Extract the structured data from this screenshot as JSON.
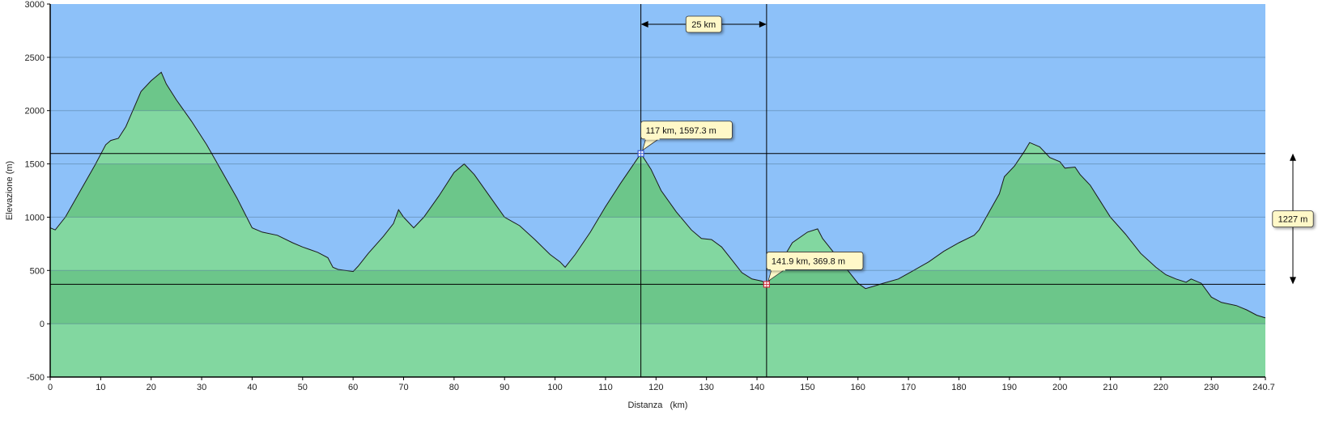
{
  "chart_data": {
    "type": "area",
    "xlabel": "Distanza   (km)",
    "ylabel": "Elevazione (m)",
    "xlim": [
      0,
      240.7
    ],
    "ylim": [
      -500,
      3000
    ],
    "x_ticks": [
      0,
      10,
      20,
      30,
      40,
      50,
      60,
      70,
      80,
      90,
      100,
      110,
      120,
      130,
      140,
      150,
      160,
      170,
      180,
      190,
      200,
      210,
      220,
      230
    ],
    "x_end_label": "240.7",
    "y_ticks": [
      -500,
      0,
      500,
      1000,
      1500,
      2000,
      2500,
      3000
    ],
    "grid": true,
    "colors": {
      "sky": "#8dc1f9",
      "area_light": "#82d7a0",
      "area_dark": "#6cc68a",
      "line": "#1a1a1a",
      "callout_bg": "#fff8c8"
    },
    "profile": {
      "x": [
        0,
        1,
        3,
        6,
        9,
        11,
        12,
        13.5,
        15,
        18,
        20,
        22,
        23,
        25,
        28,
        31,
        34,
        37,
        40,
        42,
        45,
        48,
        50,
        53,
        55,
        56,
        57,
        60,
        61,
        63,
        66,
        68,
        69,
        70,
        72,
        74,
        77,
        80,
        82,
        84,
        87,
        90,
        93,
        96,
        99,
        101,
        102,
        104,
        107,
        110,
        113,
        117,
        119,
        121,
        124,
        127,
        129,
        131,
        133,
        135,
        137,
        139,
        141,
        141.9,
        143,
        145,
        147,
        150,
        152,
        153,
        155,
        158,
        160,
        161.5,
        163,
        165,
        168,
        171,
        174,
        177,
        180,
        183,
        184,
        186,
        188,
        189,
        191,
        193,
        194,
        196,
        198,
        200,
        201,
        203,
        204,
        206,
        208,
        210,
        213,
        216,
        219,
        221,
        223,
        225,
        226,
        228,
        230,
        232,
        235,
        237,
        239,
        240.7
      ],
      "y": [
        900,
        880,
        1000,
        1250,
        1500,
        1680,
        1720,
        1740,
        1850,
        2180,
        2280,
        2360,
        2250,
        2100,
        1900,
        1680,
        1430,
        1180,
        900,
        860,
        830,
        760,
        720,
        670,
        620,
        530,
        510,
        490,
        540,
        660,
        820,
        940,
        1070,
        1000,
        900,
        1000,
        1200,
        1420,
        1500,
        1400,
        1200,
        1000,
        920,
        790,
        650,
        580,
        530,
        650,
        860,
        1100,
        1320,
        1597,
        1450,
        1250,
        1050,
        880,
        800,
        790,
        720,
        600,
        480,
        420,
        400,
        370,
        440,
        600,
        760,
        860,
        890,
        800,
        680,
        500,
        380,
        330,
        350,
        380,
        420,
        500,
        580,
        680,
        760,
        830,
        880,
        1050,
        1220,
        1380,
        1480,
        1620,
        1700,
        1660,
        1560,
        1520,
        1460,
        1470,
        1400,
        1300,
        1150,
        1000,
        840,
        660,
        530,
        460,
        420,
        390,
        420,
        380,
        250,
        200,
        170,
        130,
        80,
        55
      ]
    },
    "markers": [
      {
        "x": 117,
        "y": 1597.3,
        "label": "117 km, 1597.3 m",
        "color": "#3a5ad0"
      },
      {
        "x": 141.9,
        "y": 369.8,
        "label": "141.9 km, 369.8 m",
        "color": "#d03040"
      }
    ],
    "measurements": {
      "distance_label": "25 km",
      "elevation_label": "1227 m"
    }
  }
}
